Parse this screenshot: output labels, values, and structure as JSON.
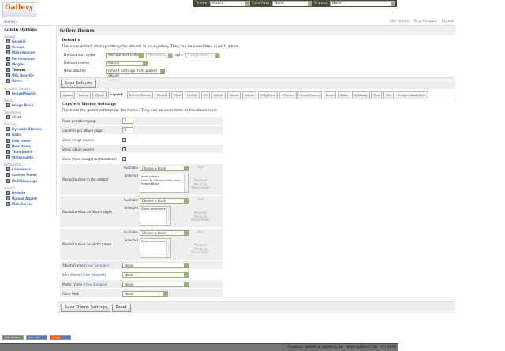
{
  "logo": "Gallery",
  "topbar": {
    "theme_label": "Theme:",
    "theme_value": "Matrix",
    "colorpack_label": "ColorPack:",
    "colorpack_value": "None",
    "frames_label": "Frames:",
    "frames_value": "None"
  },
  "breadcrumb": "Gallery",
  "header_links": [
    "Site Admin",
    "Your Account",
    "Logout"
  ],
  "sidebar": {
    "title": "Admin Options",
    "groups": [
      {
        "name": "Gallery",
        "items": [
          "General",
          "Groups",
          "Maintenance",
          "Performance",
          "Plugins",
          "Themes",
          "URL Rewrite",
          "Users"
        ]
      },
      {
        "name": "Graphics Toolkits",
        "items": [
          "ImageMagick"
        ]
      },
      {
        "name": "Blocks",
        "items": [
          "Image Block"
        ]
      },
      {
        "name": "Commerce",
        "items": [
          "zCart"
        ]
      },
      {
        "name": "Display",
        "items": [
          "Dynamic Albums",
          "Icons",
          "Link Items",
          "New Items",
          "Thumbnails",
          "Watermarks"
        ]
      },
      {
        "name": "Extra Data",
        "items": [
          "Comments",
          "Custom Fields",
          "Multilanguage"
        ]
      },
      {
        "name": "Import",
        "items": [
          "Remote",
          "Upload Applet",
          "Web/Server"
        ]
      }
    ],
    "current": "Themes"
  },
  "main": {
    "title": "Gallery Themes",
    "defaults": {
      "heading": "Defaults",
      "desc": "These are default display settings for albums in your gallery. They can be overridden in each album.",
      "sort_label": "Default sort order",
      "sort_value": "Manual sort order",
      "sort_dir": "Ascending",
      "with_label": "with",
      "presort": "« no presort »",
      "theme_label": "Default theme",
      "theme_value": "Matrix",
      "new_label": "New albums",
      "new_value": "Inherit settings from parent album",
      "save": "Save Defaults"
    },
    "tabs": [
      "Ajaxian",
      "Carbon",
      "Classic",
      "Copyleft",
      "EclecticThreads",
      "Floatrix",
      "Fluid",
      "ForSale",
      "G1",
      "Hybrid",
      "Matrix",
      "Nature",
      "PGlightbox",
      "PGtheme",
      "RoundCorners",
      "Siriux",
      "Slider",
      "Splitbang",
      "Tion",
      "Tile",
      "WordpressEmbedded"
    ],
    "active_tab": "Copyleft",
    "theme": {
      "heading": "Copyleft Theme Settings",
      "desc": "These are the global settings for the theme. They can be overridden at the album level.",
      "rows_label": "Rows per album page",
      "rows": "3",
      "cols_label": "Columns per album page",
      "cols": "3",
      "img_owners_label": "Show image owners",
      "img_owners": false,
      "album_owners_label": "Show album owners",
      "album_owners": true,
      "micro_label": "Show micro navigation thumbnails",
      "micro": false,
      "available_label": "Available",
      "selected_label": "Selected",
      "choose": "Choose a block",
      "add": "Add",
      "remove": "Remove",
      "up": "Move Up",
      "down": "Move Down",
      "blocks": [
        {
          "label": "Blocks to show in the sidebar",
          "selected": [
            "Item actions",
            "Links to album/photo peers",
            "Image Block"
          ]
        },
        {
          "label": "Blocks to show on album pages",
          "selected": [
            "Show comments"
          ]
        },
        {
          "label": "Blocks to show on photo pages",
          "selected": [
            "Show comments"
          ]
        }
      ],
      "frames": [
        {
          "label": "Album Frame",
          "link": "View Samples",
          "value": "None"
        },
        {
          "label": "Item Frame",
          "link": "View Samples",
          "value": "None"
        },
        {
          "label": "Photo Frame",
          "link": "View Samples",
          "value": "None"
        }
      ],
      "colorpack_label": "Color Pack",
      "colorpack": "None",
      "save": "Save Theme Settings",
      "reset": "Reset"
    }
  },
  "badges": [
    "W3C XHTML 1.0",
    "W3C CSS",
    "Gallery 2"
  ],
  "footer": "Contact: admin at gallery2.hu - www.gallery2.hu - (c) 2006"
}
